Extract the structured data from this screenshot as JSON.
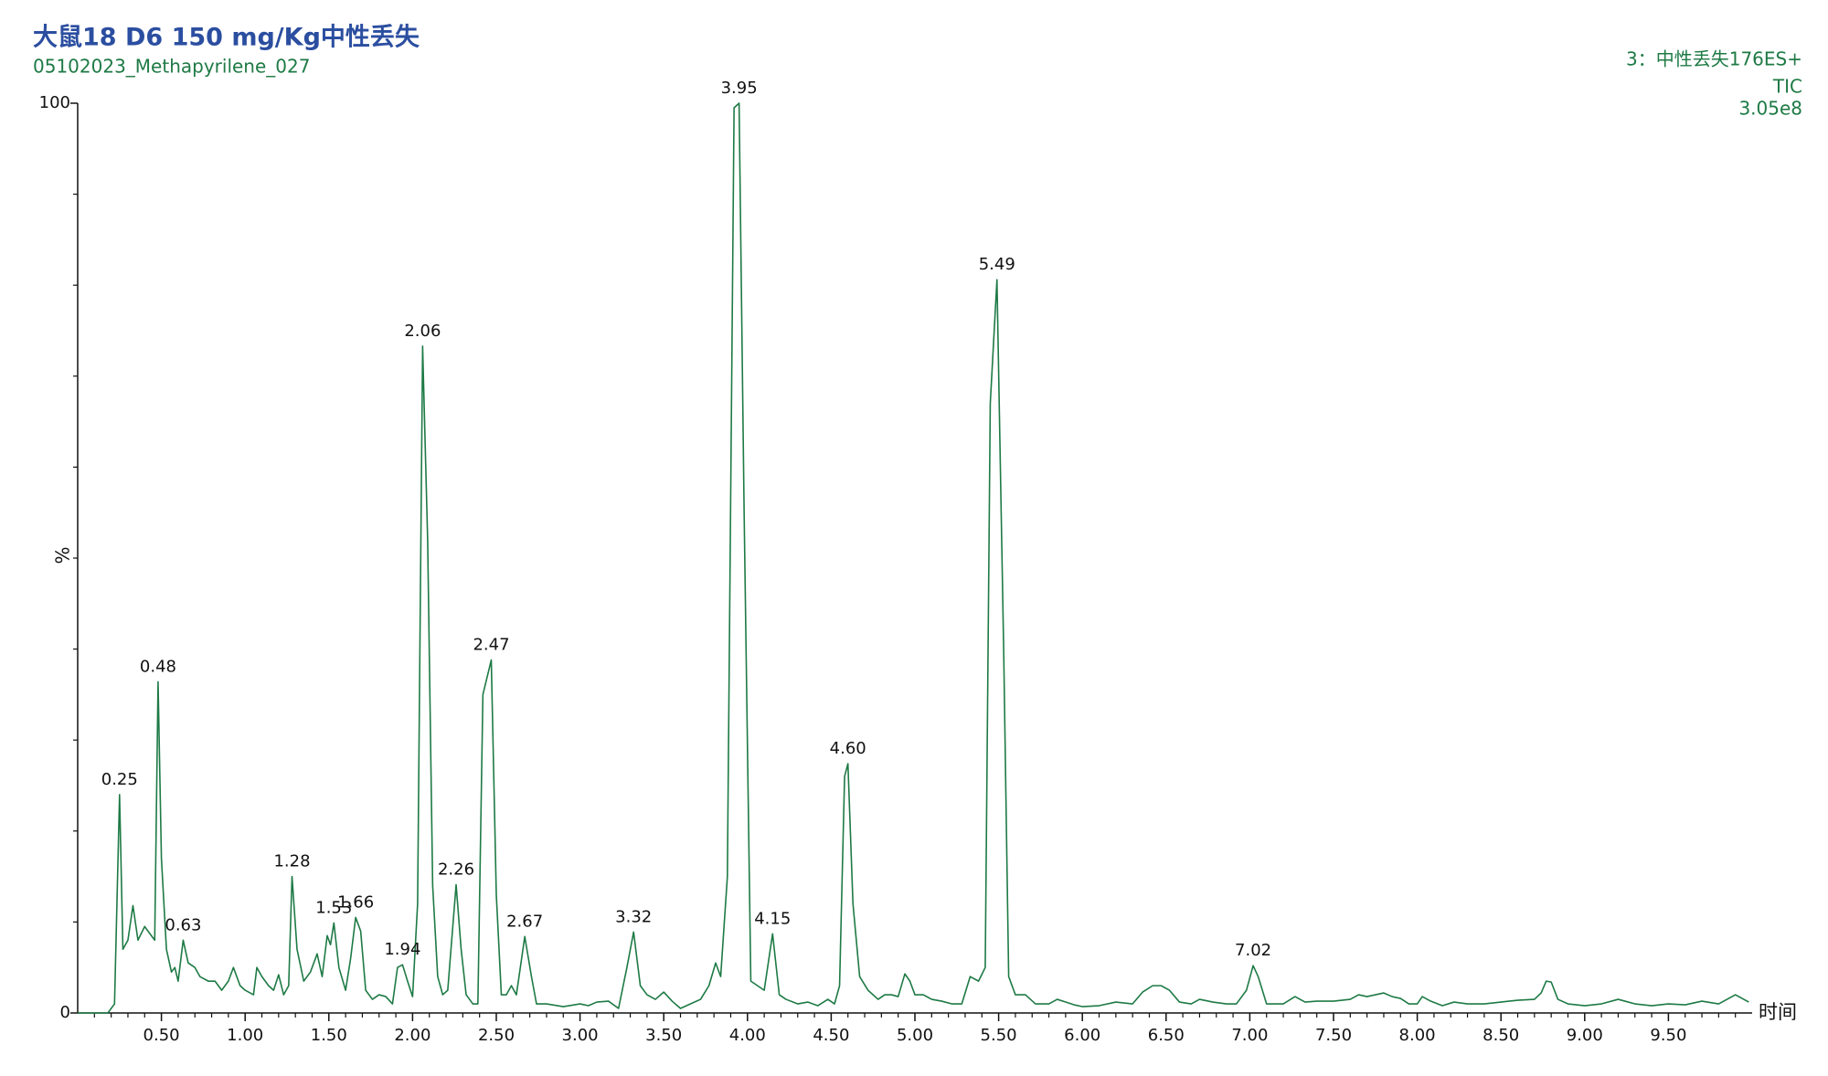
{
  "chart_data": {
    "type": "line",
    "title": "大鼠18 D6 150 mg/Kg中性丢失",
    "subtitle": "05102023_Methapyrilene_027",
    "function_label": "3：中性丢失176ES+",
    "trace_label": "TIC",
    "intensity": "3.05e8",
    "ylabel": "%",
    "xlabel": "时间",
    "xlim": [
      0,
      10
    ],
    "ylim": [
      0,
      100
    ],
    "yticks": [
      0,
      100
    ],
    "yminorticks": [
      10,
      20,
      30,
      40,
      50,
      60,
      70,
      80,
      90
    ],
    "xticks": [
      {
        "value": 0.5,
        "label": "0.50"
      },
      {
        "value": 1,
        "label": "1.00"
      },
      {
        "value": 1.5,
        "label": "1.50"
      },
      {
        "value": 2,
        "label": "2.00"
      },
      {
        "value": 2.5,
        "label": "2.50"
      },
      {
        "value": 3,
        "label": "3.00"
      },
      {
        "value": 3.5,
        "label": "3.50"
      },
      {
        "value": 4,
        "label": "4.00"
      },
      {
        "value": 4.5,
        "label": "4.50"
      },
      {
        "value": 5,
        "label": "5.00"
      },
      {
        "value": 5.5,
        "label": "5.50"
      },
      {
        "value": 6,
        "label": "6.00"
      },
      {
        "value": 6.5,
        "label": "6.50"
      },
      {
        "value": 7,
        "label": "7.00"
      },
      {
        "value": 7.5,
        "label": "7.50"
      },
      {
        "value": 8,
        "label": "8.00"
      },
      {
        "value": 8.5,
        "label": "8.50"
      },
      {
        "value": 9,
        "label": "9.00"
      },
      {
        "value": 9.5,
        "label": "9.50"
      }
    ],
    "xminorticks": [
      0.1,
      0.2,
      0.3,
      0.4,
      0.6,
      0.7,
      0.8,
      0.9,
      1.1,
      1.2,
      1.3,
      1.4,
      1.6,
      1.7,
      1.8,
      1.9,
      2.1,
      2.2,
      2.3,
      2.4,
      2.6,
      2.7,
      2.8,
      2.9,
      3.1,
      3.2,
      3.3,
      3.4,
      3.6,
      3.7,
      3.8,
      3.9,
      4.1,
      4.2,
      4.3,
      4.4,
      4.6,
      4.7,
      4.8,
      4.9,
      5.1,
      5.2,
      5.3,
      5.4,
      5.6,
      5.7,
      5.8,
      5.9,
      6.1,
      6.2,
      6.3,
      6.4,
      6.6,
      6.7,
      6.8,
      6.9,
      7.1,
      7.2,
      7.3,
      7.4,
      7.6,
      7.7,
      7.8,
      7.9,
      8.1,
      8.2,
      8.3,
      8.4,
      8.6,
      8.7,
      8.8,
      8.9,
      9.1,
      9.2,
      9.3,
      9.4,
      9.6,
      9.7,
      9.8,
      9.9
    ],
    "x": [
      0,
      0.1,
      0.18,
      0.22,
      0.25,
      0.27,
      0.3,
      0.33,
      0.36,
      0.4,
      0.44,
      0.46,
      0.48,
      0.5,
      0.53,
      0.56,
      0.58,
      0.6,
      0.63,
      0.66,
      0.7,
      0.73,
      0.78,
      0.82,
      0.86,
      0.9,
      0.93,
      0.97,
      1.0,
      1.05,
      1.07,
      1.1,
      1.14,
      1.17,
      1.2,
      1.23,
      1.26,
      1.28,
      1.31,
      1.35,
      1.39,
      1.43,
      1.46,
      1.49,
      1.51,
      1.53,
      1.56,
      1.6,
      1.63,
      1.66,
      1.69,
      1.72,
      1.76,
      1.8,
      1.84,
      1.88,
      1.91,
      1.94,
      1.97,
      2.0,
      2.03,
      2.06,
      2.09,
      2.12,
      2.15,
      2.18,
      2.21,
      2.26,
      2.29,
      2.32,
      2.36,
      2.39,
      2.42,
      2.47,
      2.5,
      2.53,
      2.56,
      2.59,
      2.62,
      2.67,
      2.71,
      2.74,
      2.8,
      2.9,
      3.0,
      3.05,
      3.1,
      3.17,
      3.23,
      3.28,
      3.32,
      3.36,
      3.4,
      3.45,
      3.5,
      3.55,
      3.6,
      3.66,
      3.72,
      3.77,
      3.81,
      3.84,
      3.88,
      3.92,
      3.95,
      3.98,
      4.02,
      4.06,
      4.1,
      4.15,
      4.19,
      4.23,
      4.3,
      4.36,
      4.42,
      4.48,
      4.52,
      4.55,
      4.58,
      4.6,
      4.63,
      4.67,
      4.72,
      4.78,
      4.82,
      4.86,
      4.9,
      4.94,
      4.97,
      5.0,
      5.05,
      5.1,
      5.16,
      5.22,
      5.28,
      5.33,
      5.38,
      5.42,
      5.45,
      5.49,
      5.53,
      5.56,
      5.6,
      5.66,
      5.72,
      5.8,
      5.85,
      5.9,
      5.95,
      6.0,
      6.1,
      6.2,
      6.3,
      6.36,
      6.42,
      6.47,
      6.52,
      6.58,
      6.65,
      6.7,
      6.78,
      6.86,
      6.92,
      6.98,
      7.02,
      7.05,
      7.1,
      7.2,
      7.27,
      7.33,
      7.4,
      7.5,
      7.6,
      7.65,
      7.7,
      7.75,
      7.8,
      7.85,
      7.9,
      7.95,
      8.0,
      8.03,
      8.08,
      8.15,
      8.22,
      8.3,
      8.4,
      8.5,
      8.6,
      8.7,
      8.74,
      8.77,
      8.8,
      8.84,
      8.9,
      9.0,
      9.1,
      9.2,
      9.3,
      9.4,
      9.5,
      9.6,
      9.7,
      9.8,
      9.85,
      9.9,
      9.94,
      9.98
    ],
    "series": [
      {
        "color": "#1e7a45",
        "values": [
          0,
          0,
          0,
          1,
          24,
          7,
          8,
          11.8,
          8,
          9.5,
          8.5,
          8,
          36.4,
          17,
          7,
          4.5,
          5,
          3.5,
          8,
          5.5,
          5,
          4,
          3.5,
          3.5,
          2.5,
          3.5,
          5,
          3,
          2.5,
          2,
          5,
          4,
          3,
          2.5,
          4.2,
          2,
          3,
          15,
          7,
          3.5,
          4.5,
          6.5,
          4,
          8.5,
          7.5,
          9.9,
          5,
          2.5,
          6,
          10.5,
          9,
          2.5,
          1.5,
          2,
          1.8,
          1,
          5,
          5.3,
          3.5,
          1.8,
          12,
          73.3,
          52,
          14,
          4,
          2,
          2.5,
          14.1,
          7,
          2,
          1,
          1,
          35,
          38.8,
          13,
          2,
          2,
          3,
          2,
          8.4,
          4,
          1,
          1,
          0.7,
          1,
          0.8,
          1.2,
          1.3,
          0.5,
          5,
          8.9,
          3,
          2,
          1.5,
          2.3,
          1.3,
          0.5,
          1,
          1.5,
          3,
          5.5,
          4,
          15,
          99.5,
          100,
          55,
          3.5,
          3,
          2.5,
          8.7,
          2,
          1.5,
          1,
          1.2,
          0.8,
          1.5,
          1,
          3,
          26,
          27.4,
          12,
          4,
          2.5,
          1.5,
          2,
          2,
          1.8,
          4.3,
          3.5,
          2,
          2,
          1.5,
          1.3,
          1,
          1,
          4,
          3.5,
          5,
          67,
          80.6,
          40,
          4,
          2,
          2,
          1,
          1,
          1.5,
          1.2,
          0.9,
          0.7,
          0.8,
          1.2,
          1,
          2.3,
          3,
          3,
          2.5,
          1.2,
          1,
          1.5,
          1.2,
          1,
          1,
          2.5,
          5.2,
          4,
          1,
          1,
          1.8,
          1.2,
          1.3,
          1.3,
          1.5,
          2,
          1.8,
          2,
          2.2,
          1.8,
          1.6,
          1,
          1,
          1.8,
          1.3,
          0.8,
          1.2,
          1,
          1,
          1.2,
          1.4,
          1.5,
          2.2,
          3.5,
          3.4,
          1.5,
          1,
          0.8,
          1,
          1.5,
          1,
          0.8,
          1,
          0.9,
          1.3,
          1,
          1.5,
          2,
          1.6,
          1.2
        ]
      }
    ],
    "peaks": {
      "x": [
        0.25,
        0.48,
        0.63,
        1.28,
        1.53,
        1.66,
        1.94,
        2.06,
        2.26,
        2.47,
        2.67,
        3.32,
        3.95,
        4.15,
        4.6,
        5.49,
        7.02
      ],
      "y": [
        24,
        36.4,
        8,
        15,
        9.9,
        10.5,
        5.3,
        73.3,
        14.1,
        38.8,
        8.4,
        8.9,
        100,
        8.7,
        27.4,
        80.6,
        5.2
      ],
      "value_labels": [
        "0.25",
        "0.48",
        "0.63",
        "1.28",
        "1.53",
        "1.66",
        "1.94",
        "2.06",
        "2.26",
        "2.47",
        "2.67",
        "3.32",
        "3.95",
        "4.15",
        "4.60",
        "5.49",
        "7.02"
      ]
    }
  }
}
